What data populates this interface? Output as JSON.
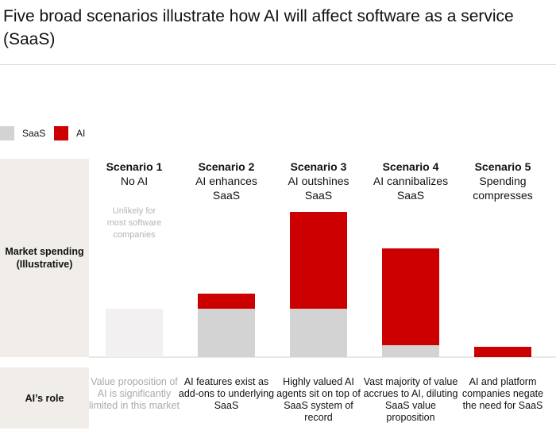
{
  "chart_data": {
    "type": "stacked-bar",
    "title": "Five broad scenarios illustrate how AI will affect software as a service (SaaS)",
    "row_labels": [
      "Market spending (Illustrative)",
      "AI’s role"
    ],
    "categories": [
      "Scenario 1",
      "Scenario 2",
      "Scenario 3",
      "Scenario 4",
      "Scenario 5"
    ],
    "category_subtitles": [
      "No AI",
      "AI enhances SaaS",
      "AI outshines SaaS",
      "AI cannibalizes SaaS",
      "Spending compresses"
    ],
    "roles": [
      "Value proposition of AI is significantly limited in this market",
      "AI features exist as add-ons to underlying SaaS",
      "Highly valued AI agents sit on top of SaaS system of record",
      "Vast majority of value accrues to AI, diluting SaaS value proposition",
      "AI and platform companies negate the need for SaaS"
    ],
    "annotation": {
      "category": 0,
      "text": "Unlikely for most software companies"
    },
    "muted_categories": [
      0
    ],
    "muted_color": "#f3f0f1",
    "series": [
      {
        "name": "SaaS",
        "color": "#d3d3d3",
        "values": [
          61,
          61,
          61,
          15,
          0
        ]
      },
      {
        "name": "AI",
        "color": "#cc0000",
        "values": [
          0,
          19,
          122,
          122,
          13
        ]
      }
    ],
    "ylim": [
      0,
      200
    ]
  }
}
